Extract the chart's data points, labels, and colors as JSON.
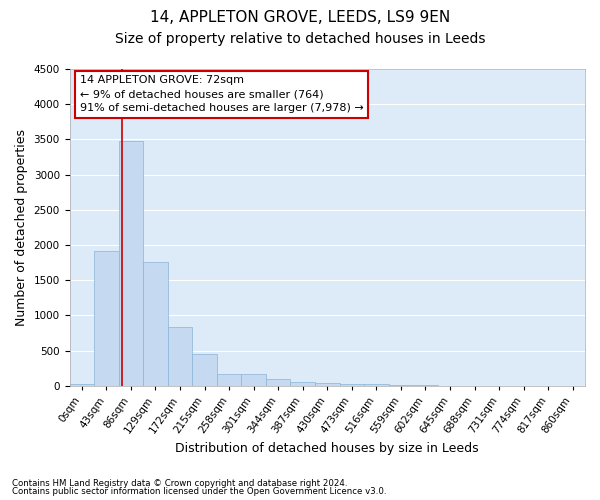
{
  "title1": "14, APPLETON GROVE, LEEDS, LS9 9EN",
  "title2": "Size of property relative to detached houses in Leeds",
  "xlabel": "Distribution of detached houses by size in Leeds",
  "ylabel": "Number of detached properties",
  "bar_labels": [
    "0sqm",
    "43sqm",
    "86sqm",
    "129sqm",
    "172sqm",
    "215sqm",
    "258sqm",
    "301sqm",
    "344sqm",
    "387sqm",
    "430sqm",
    "473sqm",
    "516sqm",
    "559sqm",
    "602sqm",
    "645sqm",
    "688sqm",
    "731sqm",
    "774sqm",
    "817sqm",
    "860sqm"
  ],
  "bar_values": [
    30,
    1920,
    3480,
    1760,
    840,
    450,
    170,
    165,
    90,
    55,
    45,
    30,
    20,
    10,
    5,
    3,
    2,
    1,
    1,
    0,
    0
  ],
  "bar_color": "#c5d9f0",
  "bar_edge_color": "#8ab4d8",
  "vline_x_index": 1.65,
  "annotation_text": "14 APPLETON GROVE: 72sqm\n← 9% of detached houses are smaller (764)\n91% of semi-detached houses are larger (7,978) →",
  "annotation_box_color": "#ffffff",
  "annotation_box_edge": "#cc0000",
  "vline_color": "#cc0000",
  "ylim": [
    0,
    4500
  ],
  "yticks": [
    0,
    500,
    1000,
    1500,
    2000,
    2500,
    3000,
    3500,
    4000,
    4500
  ],
  "footer1": "Contains HM Land Registry data © Crown copyright and database right 2024.",
  "footer2": "Contains public sector information licensed under the Open Government Licence v3.0.",
  "plot_bg": "#ddeaf8",
  "title_fontsize": 11,
  "subtitle_fontsize": 10,
  "label_fontsize": 9,
  "tick_fontsize": 7.5,
  "annotation_fontsize": 8
}
